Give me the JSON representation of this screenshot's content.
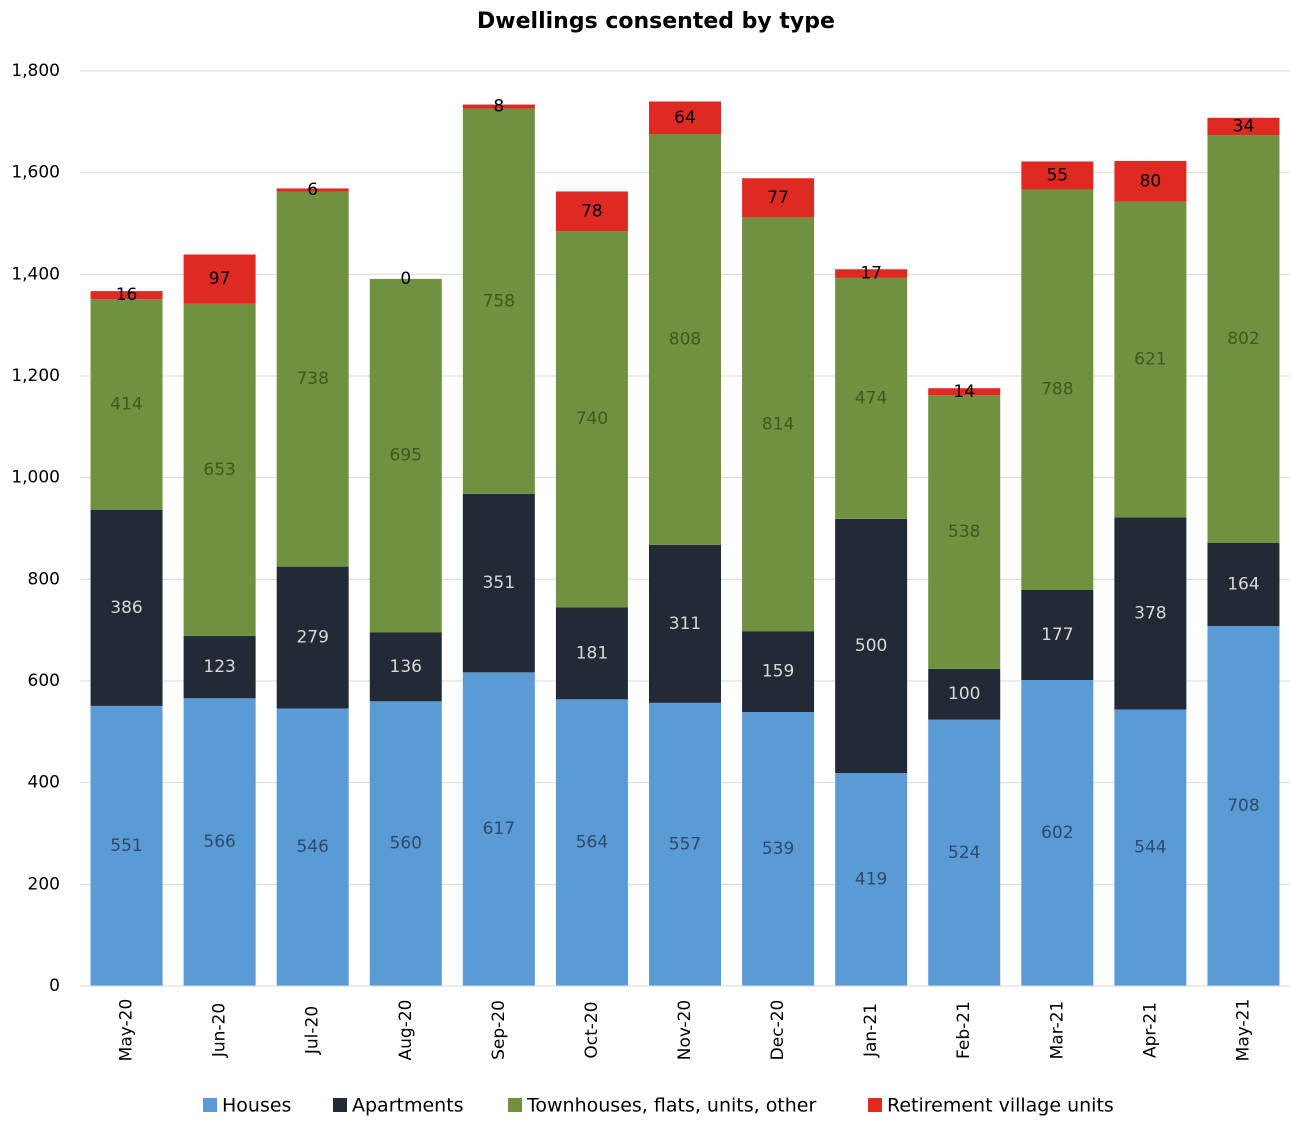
{
  "chart_data": {
    "type": "stacked_bar",
    "title": "Dwellings consented by type",
    "categories": [
      "May-20",
      "Jun-20",
      "Jul-20",
      "Aug-20",
      "Sep-20",
      "Oct-20",
      "Nov-20",
      "Dec-20",
      "Jan-21",
      "Feb-21",
      "Mar-21",
      "Apr-21",
      "May-21"
    ],
    "series": [
      {
        "name": "Houses",
        "color": "#5b9bd5",
        "values": [
          551,
          566,
          546,
          560,
          617,
          564,
          557,
          539,
          419,
          524,
          602,
          544,
          708
        ]
      },
      {
        "name": "Apartments",
        "color": "#222a35",
        "values": [
          386,
          123,
          279,
          136,
          351,
          181,
          311,
          159,
          500,
          100,
          177,
          378,
          164
        ]
      },
      {
        "name": "Townhouses, flats, units, other",
        "color": "#70913f",
        "values": [
          414,
          653,
          738,
          695,
          758,
          740,
          808,
          814,
          474,
          538,
          788,
          621,
          802
        ]
      },
      {
        "name": "Retirement village units",
        "color": "#df2a23",
        "values": [
          16,
          97,
          6,
          0,
          8,
          78,
          64,
          77,
          17,
          14,
          55,
          80,
          34
        ]
      }
    ],
    "ylim": [
      0,
      1800
    ],
    "yticks": [
      0,
      200,
      400,
      600,
      800,
      {
        "value": 1000,
        "label": "1,000"
      },
      {
        "value": 1200,
        "label": "1,200"
      },
      {
        "value": 1400,
        "label": "1,400"
      },
      {
        "value": 1600,
        "label": "1,600"
      },
      {
        "value": 1800,
        "label": "1,800"
      }
    ],
    "grid": true
  }
}
